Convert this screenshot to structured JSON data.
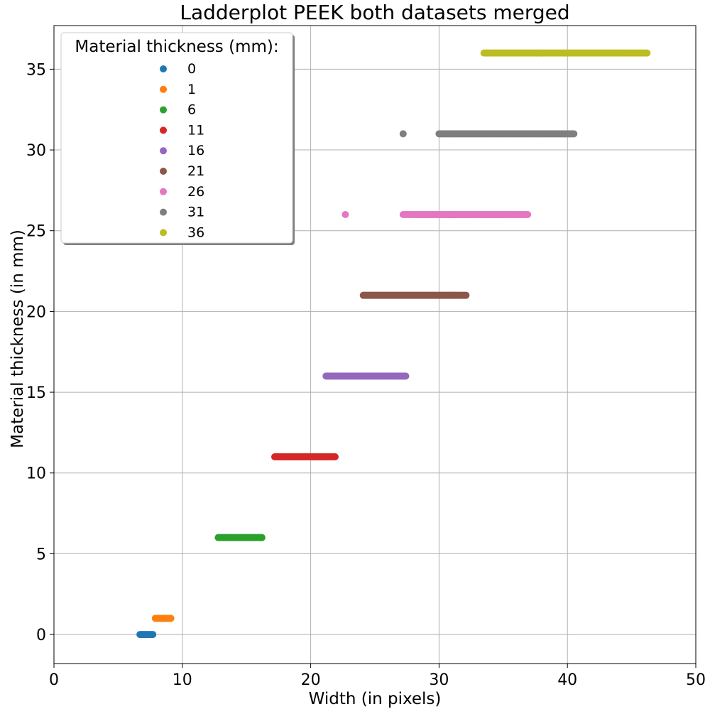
{
  "chart_data": {
    "type": "scatter",
    "title": "Ladderplot PEEK both datasets merged",
    "xlabel": "Width (in pixels)",
    "ylabel": "Material thickness (in mm)",
    "xlim": [
      0,
      50
    ],
    "ylim": [
      -1.8,
      37.7
    ],
    "xticks": [
      0,
      10,
      20,
      30,
      40,
      50
    ],
    "yticks": [
      0,
      5,
      10,
      15,
      20,
      25,
      30,
      35
    ],
    "grid": true,
    "legend": {
      "title": "Material thickness (mm):",
      "placement": "top-left"
    },
    "series": [
      {
        "name": "0",
        "y": 0,
        "color": "#1f77b4",
        "x": [
          6.7,
          6.8,
          6.9,
          7.0,
          7.1,
          7.2,
          7.3,
          7.4,
          7.5,
          7.6,
          7.7
        ]
      },
      {
        "name": "1",
        "y": 1,
        "color": "#ff7f0e",
        "x": [
          7.9,
          8.1,
          8.3,
          8.5,
          8.7,
          8.9,
          9.1
        ]
      },
      {
        "name": "6",
        "y": 6,
        "color": "#2ca02c",
        "x": [
          12.8,
          13.1,
          13.4,
          13.7,
          14.0,
          14.3,
          14.6,
          14.9,
          15.2,
          15.5,
          15.7,
          16.2
        ]
      },
      {
        "name": "11",
        "y": 11,
        "color": "#d62728",
        "x": [
          17.2,
          17.6,
          18.0,
          18.4,
          18.8,
          19.2,
          19.6,
          20.0,
          20.4,
          20.8,
          21.2,
          21.6,
          21.9
        ]
      },
      {
        "name": "16",
        "y": 16,
        "color": "#9467bd",
        "x": [
          21.2,
          21.6,
          22.0,
          22.5,
          23.0,
          23.5,
          24.0,
          24.5,
          25.0,
          25.5,
          26.0,
          26.5,
          26.9,
          27.4
        ]
      },
      {
        "name": "21",
        "y": 21,
        "color": "#8c564b",
        "x": [
          24.1,
          24.6,
          25.0,
          25.5,
          26.0,
          26.5,
          27.0,
          27.5,
          28.0,
          28.5,
          29.0,
          29.5,
          30.0,
          30.5,
          31.0,
          31.4,
          32.1
        ]
      },
      {
        "name": "26",
        "y": 26,
        "color": "#e377c2",
        "x": [
          22.7,
          27.2,
          28.0,
          28.5,
          29.0,
          29.5,
          30.0,
          30.5,
          31.0,
          31.5,
          32.0,
          32.5,
          33.0,
          33.5,
          34.0,
          34.5,
          35.0,
          35.5,
          36.2,
          36.9
        ]
      },
      {
        "name": "31",
        "y": 31,
        "color": "#7f7f7f",
        "x": [
          27.2,
          30.0,
          30.6,
          31.0,
          31.5,
          32.0,
          32.5,
          33.0,
          33.5,
          34.0,
          34.5,
          35.0,
          35.5,
          36.0,
          36.5,
          37.0,
          37.5,
          38.0,
          38.5,
          39.0,
          39.5,
          40.0,
          40.5
        ]
      },
      {
        "name": "36",
        "y": 36,
        "color": "#bcbd22",
        "x": [
          33.5,
          34.0,
          34.5,
          35.0,
          35.5,
          36.0,
          36.5,
          37.0,
          37.5,
          38.0,
          38.5,
          39.0,
          39.5,
          40.0,
          40.5,
          41.0,
          41.5,
          42.0,
          42.5,
          43.0,
          43.6,
          44.2,
          45.1,
          46.2
        ]
      }
    ]
  }
}
